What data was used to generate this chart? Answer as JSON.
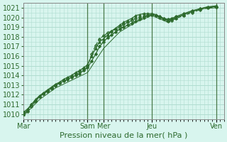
{
  "bg_color": "#d8f5ee",
  "grid_color": "#b0ddd0",
  "line_color": "#2d6a2d",
  "xlabel": "Pression niveau de la mer( hPa )",
  "xlabel_fontsize": 8,
  "ylabel_fontsize": 7,
  "ylim": [
    1009.5,
    1021.5
  ],
  "yticks": [
    1010,
    1011,
    1012,
    1013,
    1014,
    1015,
    1016,
    1017,
    1018,
    1019,
    1020,
    1021
  ],
  "xtick_labels": [
    "Mar",
    "Sam",
    "Mer",
    "Jeu",
    "Ven"
  ],
  "xtick_positions": [
    0,
    96,
    120,
    192,
    288
  ],
  "day_vlines": [
    96,
    120,
    192,
    288
  ],
  "x_max": 300,
  "series": [
    {
      "x": [
        0,
        6,
        12,
        18,
        24,
        30,
        36,
        42,
        48,
        54,
        60,
        66,
        72,
        78,
        84,
        90,
        96,
        102,
        108,
        114,
        120,
        126,
        132,
        138,
        144,
        150,
        156,
        162,
        168,
        174,
        180,
        186,
        192,
        198,
        204,
        210,
        216,
        222,
        228,
        240,
        252,
        264,
        276,
        288
      ],
      "y": [
        1010.2,
        1010.5,
        1011.0,
        1011.4,
        1011.8,
        1012.1,
        1012.4,
        1012.7,
        1013.0,
        1013.2,
        1013.4,
        1013.6,
        1013.8,
        1014.0,
        1014.2,
        1014.5,
        1014.8,
        1015.5,
        1016.2,
        1017.0,
        1017.5,
        1017.9,
        1018.2,
        1018.5,
        1018.8,
        1019.0,
        1019.2,
        1019.4,
        1019.6,
        1019.8,
        1020.0,
        1020.2,
        1020.3,
        1020.2,
        1020.1,
        1019.9,
        1019.8,
        1019.9,
        1020.1,
        1020.4,
        1020.7,
        1020.9,
        1021.1,
        1021.1
      ],
      "linestyle": "-",
      "marker": "D",
      "markersize": 2.0,
      "linewidth": 0.9
    },
    {
      "x": [
        0,
        6,
        12,
        18,
        24,
        30,
        36,
        42,
        48,
        54,
        60,
        66,
        72,
        78,
        84,
        90,
        96,
        102,
        108,
        114,
        120,
        126,
        132,
        138,
        144,
        150,
        156,
        162,
        168,
        174,
        180,
        186,
        192,
        198,
        204,
        210,
        216,
        222,
        228,
        240,
        252,
        264,
        276,
        288
      ],
      "y": [
        1010.0,
        1010.4,
        1011.0,
        1011.5,
        1011.9,
        1012.2,
        1012.5,
        1012.8,
        1013.1,
        1013.3,
        1013.6,
        1013.8,
        1014.0,
        1014.3,
        1014.5,
        1014.8,
        1015.1,
        1016.0,
        1016.8,
        1017.5,
        1017.8,
        1018.2,
        1018.6,
        1018.9,
        1019.2,
        1019.5,
        1019.7,
        1019.9,
        1020.2,
        1020.3,
        1020.4,
        1020.4,
        1020.4,
        1020.3,
        1020.1,
        1019.9,
        1019.7,
        1019.8,
        1020.0,
        1020.3,
        1020.6,
        1020.9,
        1021.1,
        1021.2
      ],
      "linestyle": "-",
      "marker": "^",
      "markersize": 2.5,
      "linewidth": 0.9
    },
    {
      "x": [
        0,
        6,
        12,
        18,
        24,
        30,
        36,
        42,
        48,
        54,
        60,
        66,
        72,
        78,
        84,
        90,
        96,
        102,
        108,
        114,
        120,
        126,
        132,
        138,
        144,
        150,
        156,
        162,
        168,
        174,
        180,
        186,
        192,
        198,
        204,
        210,
        216,
        222,
        228,
        240,
        252,
        264,
        276,
        288
      ],
      "y": [
        1010.0,
        1010.3,
        1010.8,
        1011.3,
        1011.8,
        1012.1,
        1012.3,
        1012.6,
        1012.9,
        1013.2,
        1013.5,
        1013.7,
        1013.9,
        1014.2,
        1014.4,
        1014.7,
        1015.0,
        1016.2,
        1017.1,
        1017.8,
        1018.1,
        1018.4,
        1018.6,
        1018.8,
        1019.0,
        1019.3,
        1019.5,
        1019.7,
        1019.9,
        1020.0,
        1020.1,
        1020.2,
        1020.3,
        1020.2,
        1020.0,
        1019.8,
        1019.6,
        1019.7,
        1019.9,
        1020.2,
        1020.5,
        1020.8,
        1021.0,
        1021.1
      ],
      "linestyle": "--",
      "marker": "P",
      "markersize": 2.5,
      "linewidth": 0.9
    },
    {
      "x": [
        0,
        24,
        48,
        72,
        96,
        120,
        144,
        168,
        192,
        216,
        240,
        264,
        288
      ],
      "y": [
        1009.8,
        1011.5,
        1012.7,
        1013.5,
        1014.3,
        1016.8,
        1018.5,
        1019.5,
        1020.2,
        1019.5,
        1020.3,
        1020.9,
        1021.0
      ],
      "linestyle": "-",
      "marker": null,
      "markersize": 0,
      "linewidth": 0.7
    }
  ]
}
